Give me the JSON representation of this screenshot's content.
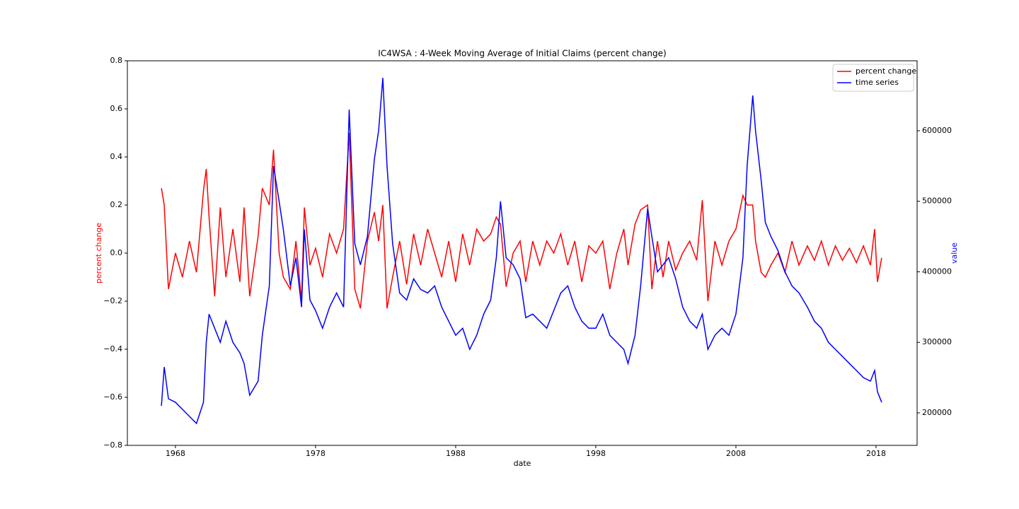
{
  "chart_data": {
    "type": "line",
    "title": "IC4WSA :  4-Week Moving Average of Initial Claims (percent change)",
    "x_label": "date",
    "y_label": "percent change",
    "y2_label": "value",
    "x": [
      1967.0,
      1967.2,
      1967.5,
      1968.0,
      1968.5,
      1969.0,
      1969.5,
      1970.0,
      1970.2,
      1970.4,
      1970.8,
      1971.2,
      1971.6,
      1972.1,
      1972.6,
      1972.9,
      1973.3,
      1973.9,
      1974.2,
      1974.7,
      1975.0,
      1975.4,
      1975.7,
      1976.2,
      1976.6,
      1977.0,
      1977.2,
      1977.6,
      1978.0,
      1978.5,
      1979.0,
      1979.5,
      1980.0,
      1980.4,
      1980.8,
      1981.2,
      1981.7,
      1982.2,
      1982.5,
      1982.8,
      1983.1,
      1983.5,
      1984.0,
      1984.5,
      1985.0,
      1985.5,
      1986.0,
      1986.5,
      1987.0,
      1987.5,
      1988.0,
      1988.5,
      1989.0,
      1989.5,
      1990.0,
      1990.5,
      1990.9,
      1991.2,
      1991.6,
      1992.1,
      1992.6,
      1993.0,
      1993.5,
      1994.0,
      1994.5,
      1995.0,
      1995.5,
      1996.0,
      1996.5,
      1997.0,
      1997.5,
      1998.0,
      1998.5,
      1999.0,
      1999.5,
      2000.0,
      2000.3,
      2000.8,
      2001.2,
      2001.7,
      2002.0,
      2002.4,
      2002.8,
      2003.2,
      2003.7,
      2004.2,
      2004.7,
      2005.2,
      2005.6,
      2006.0,
      2006.5,
      2007.0,
      2007.5,
      2008.0,
      2008.5,
      2008.8,
      2009.2,
      2009.4,
      2009.8,
      2010.1,
      2010.5,
      2011.0,
      2011.5,
      2012.0,
      2012.5,
      2013.1,
      2013.6,
      2014.1,
      2014.6,
      2015.1,
      2015.6,
      2016.1,
      2016.6,
      2017.1,
      2017.6,
      2017.9,
      2018.1,
      2018.4
    ],
    "series": [
      {
        "name": "percent change",
        "color": "#ff0000",
        "axis": "y",
        "values": [
          0.27,
          0.2,
          -0.15,
          0.0,
          -0.1,
          0.05,
          -0.08,
          0.26,
          0.35,
          0.15,
          -0.18,
          0.19,
          -0.1,
          0.1,
          -0.12,
          0.19,
          -0.18,
          0.07,
          0.27,
          0.2,
          0.43,
          0.0,
          -0.1,
          -0.15,
          0.05,
          -0.2,
          0.19,
          -0.05,
          0.02,
          -0.1,
          0.08,
          0.0,
          0.1,
          0.5,
          -0.15,
          -0.23,
          0.05,
          0.17,
          0.05,
          0.2,
          -0.23,
          -0.1,
          0.05,
          -0.13,
          0.08,
          -0.05,
          0.1,
          0.0,
          -0.1,
          0.05,
          -0.12,
          0.08,
          -0.05,
          0.1,
          0.05,
          0.08,
          0.15,
          0.12,
          -0.14,
          0.0,
          0.05,
          -0.12,
          0.05,
          -0.05,
          0.05,
          0.0,
          0.08,
          -0.05,
          0.05,
          -0.12,
          0.03,
          0.0,
          0.05,
          -0.15,
          0.0,
          0.1,
          -0.05,
          0.12,
          0.18,
          0.2,
          -0.15,
          0.05,
          -0.1,
          0.05,
          -0.07,
          0.0,
          0.05,
          -0.03,
          0.22,
          -0.2,
          0.05,
          -0.05,
          0.05,
          0.1,
          0.24,
          0.2,
          0.2,
          0.05,
          -0.08,
          -0.1,
          -0.05,
          0.0,
          -0.08,
          0.05,
          -0.05,
          0.03,
          -0.03,
          0.05,
          -0.05,
          0.03,
          -0.03,
          0.02,
          -0.04,
          0.03,
          -0.05,
          0.1,
          -0.12,
          -0.02
        ]
      },
      {
        "name": "time series",
        "color": "#0000ff",
        "axis": "y2",
        "values": [
          210000,
          265000,
          220000,
          215000,
          205000,
          195000,
          185000,
          215000,
          300000,
          340000,
          320000,
          300000,
          330000,
          300000,
          285000,
          270000,
          225000,
          245000,
          310000,
          380000,
          550000,
          500000,
          460000,
          380000,
          420000,
          350000,
          460000,
          360000,
          345000,
          320000,
          350000,
          370000,
          350000,
          630000,
          440000,
          410000,
          450000,
          560000,
          600000,
          675000,
          550000,
          440000,
          370000,
          360000,
          390000,
          375000,
          370000,
          380000,
          350000,
          330000,
          310000,
          320000,
          290000,
          310000,
          340000,
          360000,
          420000,
          500000,
          420000,
          410000,
          390000,
          335000,
          340000,
          330000,
          320000,
          345000,
          370000,
          380000,
          350000,
          330000,
          320000,
          320000,
          340000,
          310000,
          300000,
          290000,
          270000,
          310000,
          380000,
          490000,
          450000,
          400000,
          410000,
          420000,
          390000,
          350000,
          330000,
          320000,
          340000,
          290000,
          310000,
          320000,
          310000,
          340000,
          420000,
          550000,
          650000,
          600000,
          530000,
          470000,
          450000,
          430000,
          400000,
          380000,
          370000,
          350000,
          330000,
          320000,
          300000,
          290000,
          280000,
          270000,
          260000,
          250000,
          245000,
          260000,
          230000,
          215000
        ]
      }
    ],
    "xlim": [
      1964.57,
      2020.93
    ],
    "xticks": [
      1968,
      1978,
      1988,
      1998,
      2008,
      2018
    ],
    "ylim": [
      -0.8,
      0.8
    ],
    "yticks": [
      {
        "value": -0.8,
        "label": "−0.8"
      },
      {
        "value": -0.6,
        "label": "−0.6"
      },
      {
        "value": -0.4,
        "label": "−0.4"
      },
      {
        "value": -0.2,
        "label": "−0.2"
      },
      {
        "value": 0,
        "label": "0.0"
      },
      0.2,
      0.4,
      0.6,
      0.8
    ],
    "y2lim": [
      153900,
      699200
    ],
    "y2ticks": [
      200000,
      300000,
      400000,
      500000,
      600000
    ],
    "legend": "upper right",
    "grid": false
  }
}
